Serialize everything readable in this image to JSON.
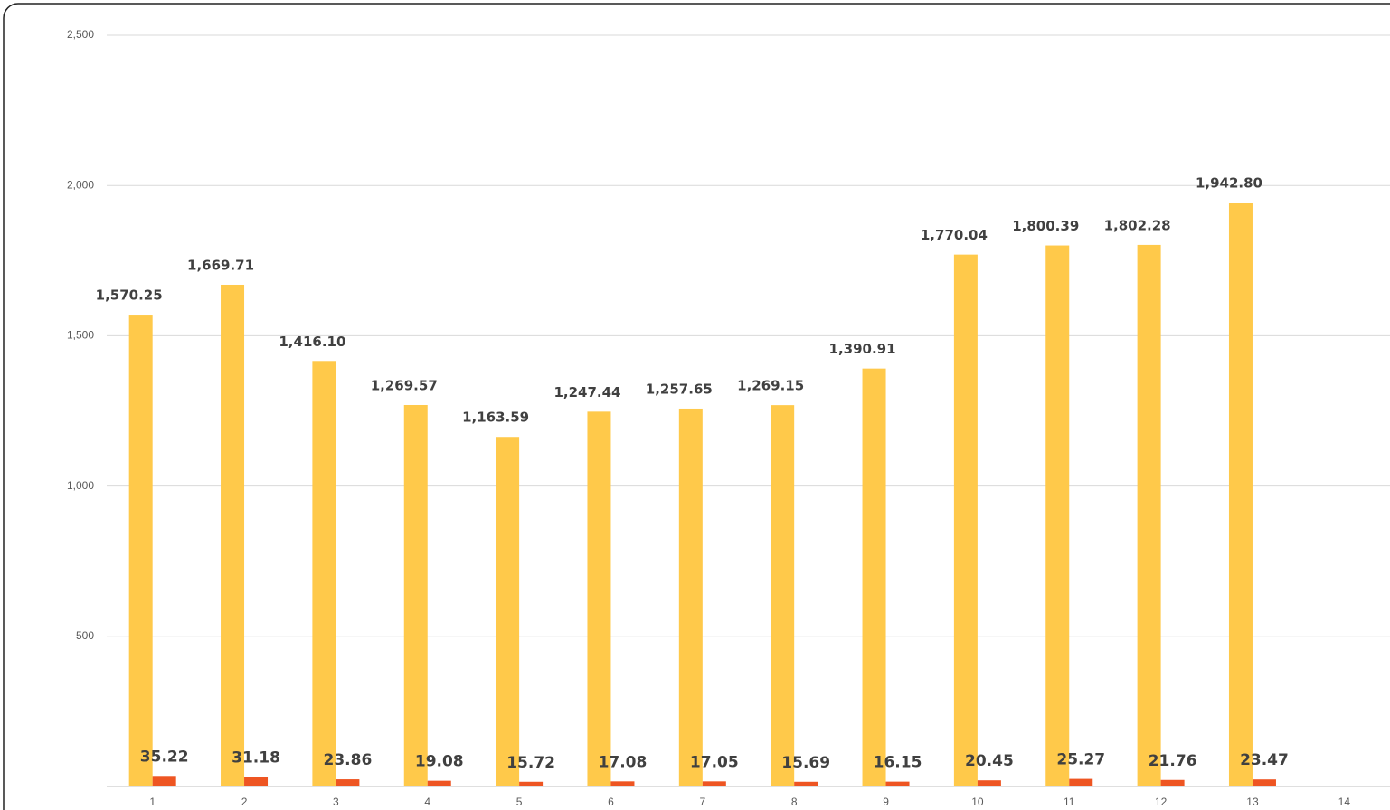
{
  "chart_data": {
    "type": "bar",
    "categories": [
      "1",
      "2",
      "3",
      "4",
      "5",
      "6",
      "7",
      "8",
      "9",
      "10",
      "11",
      "12",
      "13",
      "14"
    ],
    "series": [
      {
        "color": "#FFC94A",
        "values": [
          1570.25,
          1669.71,
          1416.1,
          1269.57,
          1163.59,
          1247.44,
          1257.65,
          1269.15,
          1390.91,
          1770.04,
          1800.39,
          1802.28,
          1942.8,
          null
        ],
        "value_labels": [
          "1,570.25",
          "1,669.71",
          "1,416.10",
          "1,269.57",
          "1,163.59",
          "1,247.44",
          "1,257.65",
          "1,269.15",
          "1,390.91",
          "1,770.04",
          "1,800.39",
          "1,802.28",
          "1,942.80",
          null
        ]
      },
      {
        "color": "#EE5522",
        "values": [
          35.22,
          31.18,
          23.86,
          19.08,
          15.72,
          17.08,
          17.05,
          15.69,
          16.15,
          20.45,
          25.27,
          21.76,
          23.47,
          null
        ]
      }
    ],
    "ylim": [
      0,
      2500
    ],
    "yticks": [
      {
        "value": 500,
        "label": "500"
      },
      {
        "value": 1000,
        "label": "1,000"
      },
      {
        "value": 1500,
        "label": "1,500"
      },
      {
        "value": 2000,
        "label": "2,000"
      },
      {
        "value": 2500,
        "label": "2,500"
      }
    ],
    "grid": true
  }
}
